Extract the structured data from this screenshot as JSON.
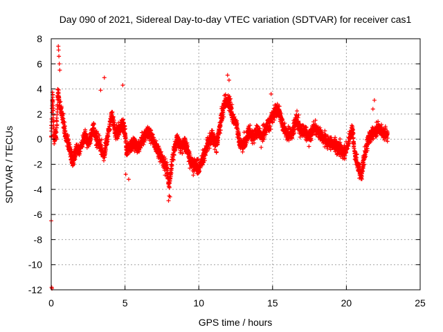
{
  "chart_data": {
    "type": "scatter",
    "title": "Day 090 of 2021, Sidereal Day-to-day VTEC variation (SDTVAR) for receiver cas1",
    "xlabel": "GPS time / hours",
    "ylabel": "SDTVAR / TECUs",
    "xlim": [
      0,
      25
    ],
    "ylim": [
      -12,
      8
    ],
    "xticks": [
      0,
      5,
      10,
      15,
      20,
      25
    ],
    "yticks": [
      -12,
      -10,
      -8,
      -6,
      -4,
      -2,
      0,
      2,
      4,
      6,
      8
    ],
    "xtick_labels": [
      "0",
      "5",
      "10",
      "15",
      "20",
      "25"
    ],
    "ytick_labels": [
      "-12",
      "-10",
      "-8",
      "-6",
      "-4",
      "-2",
      "0",
      "2",
      "4",
      "6",
      "8"
    ],
    "grid": true,
    "marker": "+",
    "series": [
      {
        "name": "SDTVAR",
        "color": "#ff0000",
        "trend": [
          [
            0.0,
            0.2
          ],
          [
            0.05,
            2.5
          ],
          [
            0.1,
            3.6
          ],
          [
            0.15,
            1.0
          ],
          [
            0.2,
            0.0
          ],
          [
            0.35,
            0.4
          ],
          [
            0.45,
            3.8
          ],
          [
            0.55,
            3.0
          ],
          [
            0.7,
            2.3
          ],
          [
            0.85,
            1.0
          ],
          [
            1.0,
            0.2
          ],
          [
            1.2,
            -0.5
          ],
          [
            1.45,
            -1.8
          ],
          [
            1.7,
            -0.9
          ],
          [
            2.0,
            -0.6
          ],
          [
            2.3,
            0.3
          ],
          [
            2.55,
            -0.5
          ],
          [
            2.85,
            1.0
          ],
          [
            3.0,
            0.2
          ],
          [
            3.3,
            -0.5
          ],
          [
            3.6,
            -1.3
          ],
          [
            3.85,
            0.5
          ],
          [
            4.1,
            1.9
          ],
          [
            4.35,
            0.6
          ],
          [
            4.55,
            0.6
          ],
          [
            4.8,
            1.2
          ],
          [
            5.0,
            0.6
          ],
          [
            5.1,
            -1.0
          ],
          [
            5.3,
            -0.6
          ],
          [
            5.6,
            -0.4
          ],
          [
            5.9,
            -0.7
          ],
          [
            6.2,
            -0.1
          ],
          [
            6.5,
            0.6
          ],
          [
            6.8,
            0.2
          ],
          [
            7.0,
            -0.4
          ],
          [
            7.3,
            -1.0
          ],
          [
            7.6,
            -1.8
          ],
          [
            7.85,
            -2.4
          ],
          [
            8.0,
            -3.8
          ],
          [
            8.2,
            -1.5
          ],
          [
            8.5,
            0.0
          ],
          [
            8.8,
            -0.6
          ],
          [
            9.1,
            -0.2
          ],
          [
            9.4,
            -1.6
          ],
          [
            9.7,
            -2.1
          ],
          [
            10.0,
            -2.3
          ],
          [
            10.3,
            -1.5
          ],
          [
            10.6,
            -0.4
          ],
          [
            10.9,
            0.3
          ],
          [
            11.2,
            -0.5
          ],
          [
            11.5,
            1.5
          ],
          [
            11.7,
            2.7
          ],
          [
            11.9,
            3.0
          ],
          [
            12.1,
            2.9
          ],
          [
            12.3,
            1.6
          ],
          [
            12.55,
            1.2
          ],
          [
            12.8,
            -0.5
          ],
          [
            13.1,
            -0.4
          ],
          [
            13.4,
            0.6
          ],
          [
            13.7,
            0.1
          ],
          [
            14.0,
            0.7
          ],
          [
            14.3,
            0.2
          ],
          [
            14.6,
            1.0
          ],
          [
            14.9,
            1.6
          ],
          [
            15.2,
            2.3
          ],
          [
            15.45,
            2.2
          ],
          [
            15.7,
            1.1
          ],
          [
            16.0,
            0.4
          ],
          [
            16.3,
            0.4
          ],
          [
            16.6,
            1.5
          ],
          [
            16.9,
            0.8
          ],
          [
            17.2,
            0.6
          ],
          [
            17.5,
            0.1
          ],
          [
            17.8,
            1.0
          ],
          [
            18.1,
            0.6
          ],
          [
            18.4,
            0.1
          ],
          [
            18.7,
            -0.2
          ],
          [
            19.0,
            -0.3
          ],
          [
            19.3,
            -0.6
          ],
          [
            19.6,
            -0.8
          ],
          [
            19.9,
            -1.1
          ],
          [
            20.2,
            0.1
          ],
          [
            20.4,
            0.9
          ],
          [
            20.6,
            -1.4
          ],
          [
            20.8,
            -2.1
          ],
          [
            21.0,
            -3.0
          ],
          [
            21.2,
            -1.5
          ],
          [
            21.45,
            -0.2
          ],
          [
            21.7,
            0.4
          ],
          [
            21.95,
            0.6
          ],
          [
            22.2,
            0.9
          ],
          [
            22.5,
            0.5
          ],
          [
            22.8,
            0.3
          ]
        ],
        "outliers": [
          [
            0.0,
            -6.5
          ],
          [
            0.03,
            -11.8
          ],
          [
            0.05,
            -11.9
          ],
          [
            0.08,
            2.8
          ],
          [
            0.12,
            1.7
          ],
          [
            0.48,
            7.4
          ],
          [
            0.5,
            7.1
          ],
          [
            0.52,
            6.6
          ],
          [
            0.55,
            6.0
          ],
          [
            0.58,
            5.5
          ],
          [
            3.35,
            3.9
          ],
          [
            3.6,
            4.9
          ],
          [
            4.85,
            4.3
          ],
          [
            5.05,
            -2.8
          ],
          [
            5.25,
            -3.2
          ],
          [
            7.95,
            -4.9
          ],
          [
            8.05,
            -4.6
          ],
          [
            11.95,
            5.1
          ],
          [
            12.05,
            4.7
          ],
          [
            14.9,
            3.6
          ],
          [
            21.8,
            2.4
          ],
          [
            21.9,
            3.1
          ]
        ]
      }
    ]
  }
}
